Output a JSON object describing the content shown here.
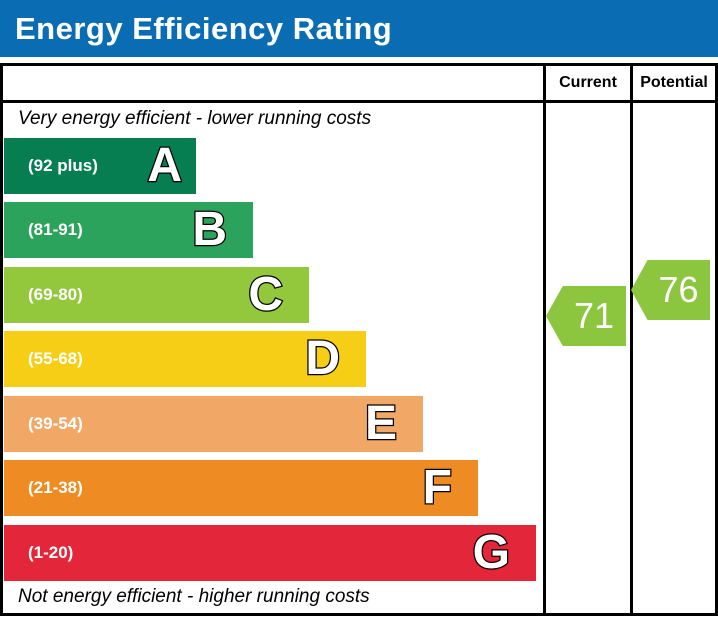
{
  "title": "Energy Efficiency Rating",
  "columns": {
    "current": "Current",
    "potential": "Potential"
  },
  "top_note": "Very energy efficient - lower running costs",
  "bottom_note": "Not energy efficient - higher running costs",
  "bands": [
    {
      "letter": "A",
      "range": "(92 plus)",
      "color": "#077d52"
    },
    {
      "letter": "B",
      "range": "(81-91)",
      "color": "#2ba35c"
    },
    {
      "letter": "C",
      "range": "(69-80)",
      "color": "#93c83d"
    },
    {
      "letter": "D",
      "range": "(55-68)",
      "color": "#f6ce15"
    },
    {
      "letter": "E",
      "range": "(39-54)",
      "color": "#f1a866"
    },
    {
      "letter": "F",
      "range": "(21-38)",
      "color": "#ee8b22"
    },
    {
      "letter": "G",
      "range": "(1-20)",
      "color": "#e32639"
    }
  ],
  "ratings": {
    "current": "71",
    "potential": "76"
  },
  "colors": {
    "header_bg": "#0a6db4",
    "header_text": "#ffffff",
    "border": "#000000",
    "arrow": "#8cc63f"
  },
  "chart_data": {
    "type": "bar",
    "title": "Energy Efficiency Rating",
    "categories": [
      "A",
      "B",
      "C",
      "D",
      "E",
      "F",
      "G"
    ],
    "band_ranges": [
      "92 plus",
      "81-91",
      "69-80",
      "55-68",
      "39-54",
      "21-38",
      "1-20"
    ],
    "band_colors": [
      "#077d52",
      "#2ba35c",
      "#93c83d",
      "#f6ce15",
      "#f1a866",
      "#ee8b22",
      "#e32639"
    ],
    "series": [
      {
        "name": "Current",
        "values": [
          71
        ],
        "band": "C"
      },
      {
        "name": "Potential",
        "values": [
          76
        ],
        "band": "C"
      }
    ],
    "annotations": [
      "Very energy efficient - lower running costs",
      "Not energy efficient - higher running costs"
    ],
    "legend_position": "none",
    "grid": false
  }
}
